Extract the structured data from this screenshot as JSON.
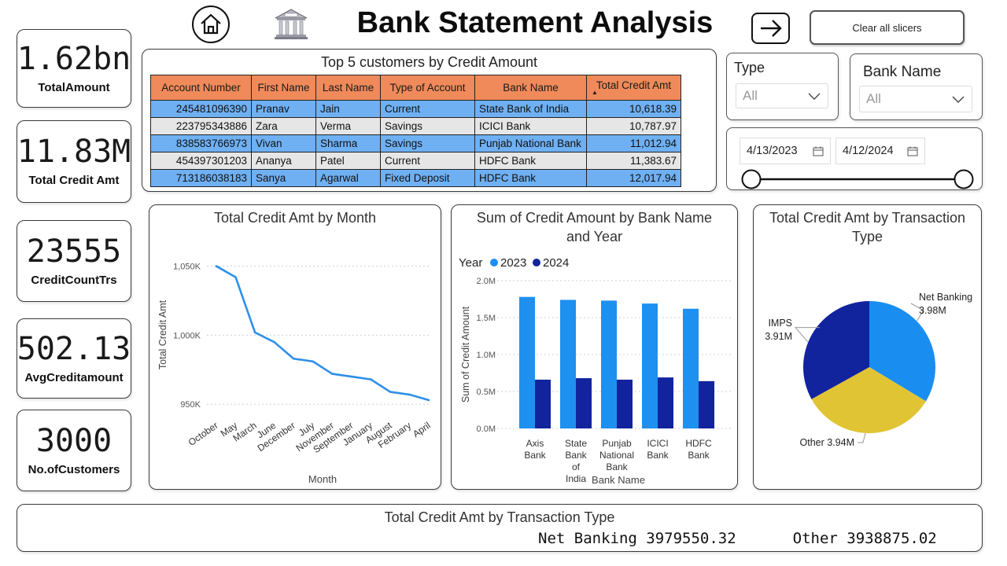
{
  "header": {
    "title": "Bank Statement Analysis",
    "clear_label": "Clear all slicers"
  },
  "kpis": [
    {
      "value": "1.62bn",
      "label": "TotalAmount"
    },
    {
      "value": "11.83M",
      "label": "Total Credit Amt"
    },
    {
      "value": "23555",
      "label": "CreditCountTrs"
    },
    {
      "value": "502.13",
      "label": "AvgCreditamount"
    },
    {
      "value": "3000",
      "label": "No.ofCustomers"
    }
  ],
  "top5": {
    "title": "Top 5 customers by Credit Amount",
    "columns": [
      "Account Number",
      "First Name",
      "Last Name",
      "Type of Account",
      "Bank Name",
      "Total Credit Amt"
    ],
    "rows": [
      [
        "245481096390",
        "Pranav",
        "Jain",
        "Current",
        "State Bank of India",
        "10,618.39"
      ],
      [
        "223795343886",
        "Zara",
        "Verma",
        "Savings",
        "ICICI Bank",
        "10,787.97"
      ],
      [
        "838583766973",
        "Vivan",
        "Sharma",
        "Savings",
        "Punjab National Bank",
        "11,012.94"
      ],
      [
        "454397301203",
        "Ananya",
        "Patel",
        "Current",
        "HDFC Bank",
        "11,383.67"
      ],
      [
        "713186038183",
        "Sanya",
        "Agarwal",
        "Fixed Deposit",
        "HDFC Bank",
        "12,017.94"
      ]
    ]
  },
  "slicers": {
    "type_title": "Type",
    "type_value": "All",
    "bank_title": "Bank Name",
    "bank_value": "All",
    "date_start": "4/13/2023",
    "date_end": "4/12/2024"
  },
  "chart_data": [
    {
      "type": "line",
      "title": "Total Credit Amt by Month",
      "xlabel": "Month",
      "ylabel": "Total Credit Amt",
      "categories": [
        "October",
        "May",
        "March",
        "June",
        "December",
        "July",
        "November",
        "September",
        "January",
        "August",
        "February",
        "April"
      ],
      "values": [
        1050,
        1042,
        1002,
        995,
        983,
        981,
        972,
        970,
        968,
        959,
        957,
        953
      ],
      "yticks": [
        "950K",
        "1,000K",
        "1,050K"
      ],
      "ylim": [
        945,
        1060
      ],
      "color": "#2f8fe8"
    },
    {
      "type": "bar",
      "title": "Sum of Credit Amount by Bank Name and Year",
      "xlabel": "Bank Name",
      "ylabel": "Sum of Credit Amount",
      "legend_title": "Year",
      "categories": [
        "Axis Bank",
        "State Bank of India",
        "Punjab National Bank",
        "ICICI Bank",
        "HDFC Bank"
      ],
      "series": [
        {
          "name": "2023",
          "color": "#1e90f0",
          "values": [
            1.78,
            1.74,
            1.73,
            1.69,
            1.62
          ]
        },
        {
          "name": "2024",
          "color": "#12239e",
          "values": [
            0.66,
            0.68,
            0.66,
            0.69,
            0.64
          ]
        }
      ],
      "yticks": [
        "0.0M",
        "0.5M",
        "1.0M",
        "1.5M",
        "2.0M"
      ],
      "ylim": [
        0,
        2.0
      ]
    },
    {
      "type": "pie",
      "title": "Total Credit Amt by Transaction Type",
      "slices": [
        {
          "name": "Net Banking",
          "value": 3.98,
          "label": "3.98M",
          "color": "#1a8ef0"
        },
        {
          "name": "Other",
          "value": 3.94,
          "label": "3.94M",
          "color": "#e0c434"
        },
        {
          "name": "IMPS",
          "value": 3.91,
          "label": "3.91M",
          "color": "#12239e"
        }
      ]
    }
  ],
  "footer": {
    "title": "Total Credit Amt by Transaction Type",
    "item1": "Net Banking 3979550.32",
    "item2": "Other 3938875.02"
  }
}
